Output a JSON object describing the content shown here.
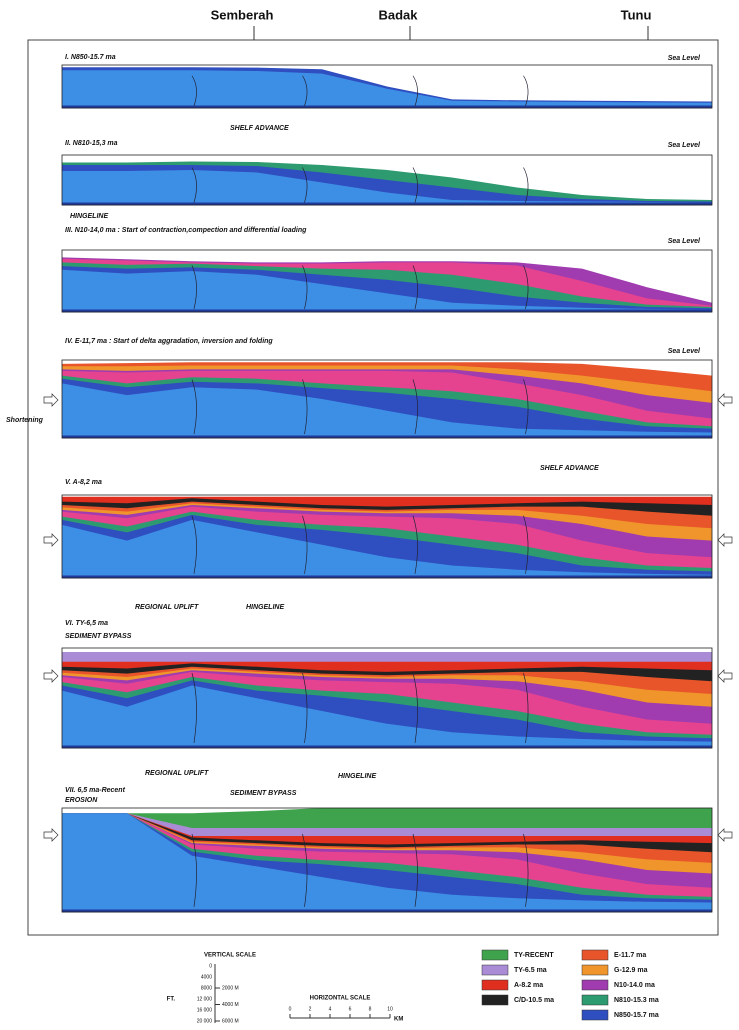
{
  "locations": [
    "Semberah",
    "Badak",
    "Tunu"
  ],
  "panels": [
    {
      "title": "I. N850-15.7 ma",
      "notes": [
        "Sea Level"
      ]
    },
    {
      "title": "II. N810-15,3 ma",
      "notes": [
        "SHELF ADVANCE",
        "Sea Level"
      ]
    },
    {
      "title": "III. N10-14,0 ma : Start of contraction,compection and differential loading",
      "notes": [
        "HINGELINE",
        "Sea Level"
      ]
    },
    {
      "title": "IV. E-11,7 ma : Start of delta aggradation, inversion and folding",
      "notes": [
        "Sea Level",
        "Shortening"
      ]
    },
    {
      "title": "V. A-8,2 ma",
      "notes": [
        "SHELF ADVANCE"
      ]
    },
    {
      "title": "VI. TY-6,5 ma",
      "notes": [
        "REGIONAL UPLIFT",
        "HINGELINE",
        "SEDIMENT BYPASS"
      ]
    },
    {
      "title": "VII. 6,5 ma-Recent",
      "notes": [
        "REGIONAL UPLIFT",
        "HINGELINE",
        "EROSION",
        "SEDIMENT BYPASS"
      ]
    }
  ],
  "legend": [
    {
      "label": "TY-RECENT",
      "color": "#3fa34d"
    },
    {
      "label": "TY-6.5 ma",
      "color": "#a98bd6"
    },
    {
      "label": "A-8.2 ma",
      "color": "#e02f1f"
    },
    {
      "label": "C/D-10.5 ma",
      "color": "#222222"
    },
    {
      "label": "E-11.7 ma",
      "color": "#e8552a"
    },
    {
      "label": "G-12.9 ma",
      "color": "#f0952c"
    },
    {
      "label": "N10-14.0 ma",
      "color": "#a03cb0"
    },
    {
      "label": "N810-15.3 ma",
      "color": "#2e9a70"
    },
    {
      "label": "N850-15.7 ma",
      "color": "#2f4fc0"
    }
  ],
  "vertical_scale": {
    "title": "VERTICAL SCALE",
    "unit": "FT.",
    "feet": [
      "0",
      "4000",
      "8000",
      "12 000",
      "16 000",
      "20 000"
    ],
    "meters": [
      "2000 M",
      "4000 M",
      "6000 M"
    ]
  },
  "horizontal_scale": {
    "title": "HORIZONTAL SCALE",
    "ticks": [
      0,
      2,
      4,
      6,
      8,
      10
    ],
    "unit": "KM"
  }
}
